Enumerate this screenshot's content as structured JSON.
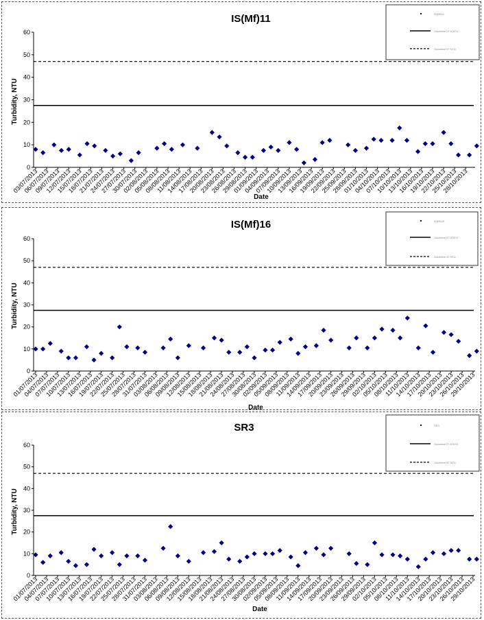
{
  "chart_data": [
    {
      "type": "scatter",
      "title": "IS(Mf)11",
      "xlabel": "Date",
      "ylabel": "Turbidity, NTU",
      "ylim": [
        0,
        60
      ],
      "yticks": [
        0,
        10,
        20,
        30,
        40,
        50,
        60
      ],
      "x_range": [
        "2013-07-03",
        "2013-10-30"
      ],
      "xticks": [
        "03/07/2013",
        "06/07/2013",
        "09/07/2013",
        "12/07/2013",
        "15/07/2013",
        "18/07/2013",
        "21/07/2013",
        "24/07/2013",
        "27/07/2013",
        "30/07/2013",
        "02/08/2013",
        "05/08/2013",
        "08/08/2013",
        "11/08/2013",
        "14/08/2013",
        "17/08/2013",
        "20/08/2013",
        "23/08/2013",
        "26/08/2013",
        "29/08/2013",
        "01/09/2013",
        "04/09/2013",
        "07/09/2013",
        "10/09/2013",
        "13/09/2013",
        "16/09/2013",
        "19/09/2013",
        "22/09/2013",
        "25/09/2013",
        "28/09/2013",
        "01/10/2013",
        "04/10/2013",
        "07/10/2013",
        "10/10/2013",
        "13/10/2013",
        "16/10/2013",
        "19/10/2013",
        "22/10/2013",
        "25/10/2013",
        "28/10/2013"
      ],
      "legend": {
        "position": "top-right",
        "entries": [
          "IS(Mf)11",
          "Guideline 27.5 NTU",
          "Guideline 47 NTU"
        ]
      },
      "hlines": [
        {
          "y": 27.5,
          "style": "solid"
        },
        {
          "y": 47,
          "style": "dashed"
        }
      ],
      "series": [
        {
          "marker": "diamond",
          "color": "#00008B",
          "points": [
            [
              "2013-07-03",
              8
            ],
            [
              "2013-07-05",
              6.5
            ],
            [
              "2013-07-08",
              10
            ],
            [
              "2013-07-10",
              7.5
            ],
            [
              "2013-07-12",
              8
            ],
            [
              "2013-07-15",
              5.5
            ],
            [
              "2013-07-17",
              10.5
            ],
            [
              "2013-07-19",
              9.5
            ],
            [
              "2013-07-22",
              7.5
            ],
            [
              "2013-07-24",
              5
            ],
            [
              "2013-07-26",
              6
            ],
            [
              "2013-07-29",
              3
            ],
            [
              "2013-07-31",
              6.5
            ],
            [
              "2013-08-05",
              8.5
            ],
            [
              "2013-08-07",
              10.5
            ],
            [
              "2013-08-09",
              8
            ],
            [
              "2013-08-12",
              10
            ],
            [
              "2013-08-16",
              8.5
            ],
            [
              "2013-08-20",
              15.5
            ],
            [
              "2013-08-22",
              13.5
            ],
            [
              "2013-08-24",
              9.5
            ],
            [
              "2013-08-27",
              6.5
            ],
            [
              "2013-08-29",
              4.5
            ],
            [
              "2013-08-31",
              4.5
            ],
            [
              "2013-09-03",
              7.5
            ],
            [
              "2013-09-05",
              9
            ],
            [
              "2013-09-07",
              7.5
            ],
            [
              "2013-09-10",
              11
            ],
            [
              "2013-09-12",
              8
            ],
            [
              "2013-09-14",
              2
            ],
            [
              "2013-09-17",
              3.5
            ],
            [
              "2013-09-19",
              11
            ],
            [
              "2013-09-21",
              12
            ],
            [
              "2013-09-26",
              10
            ],
            [
              "2013-09-28",
              7.5
            ],
            [
              "2013-10-01",
              8.5
            ],
            [
              "2013-10-03",
              12.5
            ],
            [
              "2013-10-05",
              12
            ],
            [
              "2013-10-08",
              12
            ],
            [
              "2013-10-10",
              17.5
            ],
            [
              "2013-10-12",
              12
            ],
            [
              "2013-10-15",
              7
            ],
            [
              "2013-10-17",
              10.5
            ],
            [
              "2013-10-19",
              10.5
            ],
            [
              "2013-10-22",
              15.5
            ],
            [
              "2013-10-24",
              10.5
            ],
            [
              "2013-10-26",
              5.5
            ],
            [
              "2013-10-29",
              5.5
            ],
            [
              "2013-10-31",
              9.5
            ]
          ]
        }
      ]
    },
    {
      "type": "scatter",
      "title": "IS(Mf)16",
      "xlabel": "Date",
      "ylabel": "Turbidity, NTU",
      "ylim": [
        0,
        60
      ],
      "yticks": [
        0,
        10,
        20,
        30,
        40,
        50,
        60
      ],
      "x_range": [
        "2013-07-01",
        "2013-10-29"
      ],
      "xticks": [
        "01/07/2013",
        "04/07/2013",
        "07/07/2013",
        "10/07/2013",
        "13/07/2013",
        "16/07/2013",
        "19/07/2013",
        "22/07/2013",
        "25/07/2013",
        "28/07/2013",
        "31/07/2013",
        "03/08/2013",
        "06/08/2013",
        "09/08/2013",
        "12/08/2013",
        "15/08/2013",
        "18/08/2013",
        "21/08/2013",
        "24/08/2013",
        "27/08/2013",
        "30/08/2013",
        "02/09/2013",
        "05/09/2013",
        "08/09/2013",
        "11/09/2013",
        "14/09/2013",
        "17/09/2013",
        "20/09/2013",
        "23/09/2013",
        "26/09/2013",
        "29/09/2013",
        "02/10/2013",
        "05/10/2013",
        "08/10/2013",
        "11/10/2013",
        "14/10/2013",
        "17/10/2013",
        "20/10/2013",
        "23/10/2013",
        "26/10/2013",
        "29/10/2013"
      ],
      "legend": {
        "position": "top-right",
        "entries": [
          "IS(Mf)16",
          "Guideline 27.5 NTU",
          "Guideline 47 NTU"
        ]
      },
      "hlines": [
        {
          "y": 27.5,
          "style": "solid"
        },
        {
          "y": 47,
          "style": "dashed"
        }
      ],
      "series": [
        {
          "marker": "diamond",
          "color": "#00008B",
          "points": [
            [
              "2013-07-01",
              10
            ],
            [
              "2013-07-03",
              10
            ],
            [
              "2013-07-05",
              12.5
            ],
            [
              "2013-07-08",
              9
            ],
            [
              "2013-07-10",
              6
            ],
            [
              "2013-07-12",
              6
            ],
            [
              "2013-07-15",
              11
            ],
            [
              "2013-07-17",
              5
            ],
            [
              "2013-07-19",
              8
            ],
            [
              "2013-07-22",
              6
            ],
            [
              "2013-07-24",
              20
            ],
            [
              "2013-07-26",
              11
            ],
            [
              "2013-07-29",
              10.5
            ],
            [
              "2013-07-31",
              8.5
            ],
            [
              "2013-08-05",
              10.5
            ],
            [
              "2013-08-07",
              14.5
            ],
            [
              "2013-08-09",
              6
            ],
            [
              "2013-08-12",
              11.5
            ],
            [
              "2013-08-16",
              10.5
            ],
            [
              "2013-08-19",
              15
            ],
            [
              "2013-08-21",
              14
            ],
            [
              "2013-08-23",
              8.5
            ],
            [
              "2013-08-26",
              8.5
            ],
            [
              "2013-08-28",
              11
            ],
            [
              "2013-08-30",
              6
            ],
            [
              "2013-09-02",
              9.5
            ],
            [
              "2013-09-04",
              9.5
            ],
            [
              "2013-09-06",
              13
            ],
            [
              "2013-09-09",
              14.5
            ],
            [
              "2013-09-11",
              8
            ],
            [
              "2013-09-13",
              11
            ],
            [
              "2013-09-16",
              11.5
            ],
            [
              "2013-09-18",
              18.5
            ],
            [
              "2013-09-20",
              14
            ],
            [
              "2013-09-25",
              10.5
            ],
            [
              "2013-09-27",
              15
            ],
            [
              "2013-09-30",
              10.5
            ],
            [
              "2013-10-02",
              15
            ],
            [
              "2013-10-04",
              19
            ],
            [
              "2013-10-07",
              18.5
            ],
            [
              "2013-10-09",
              15
            ],
            [
              "2013-10-11",
              24
            ],
            [
              "2013-10-14",
              10.5
            ],
            [
              "2013-10-16",
              20.5
            ],
            [
              "2013-10-18",
              8.5
            ],
            [
              "2013-10-21",
              17.5
            ],
            [
              "2013-10-23",
              16.5
            ],
            [
              "2013-10-25",
              13.5
            ],
            [
              "2013-10-28",
              7
            ],
            [
              "2013-10-30",
              9
            ]
          ]
        }
      ]
    },
    {
      "type": "scatter",
      "title": "SR3",
      "xlabel": "Date",
      "ylabel": "Turbidity, NTU",
      "ylim": [
        0,
        60
      ],
      "yticks": [
        0,
        10,
        20,
        30,
        40,
        50,
        60
      ],
      "x_range": [
        "2013-07-01",
        "2013-10-29"
      ],
      "xticks": [
        "01/07/2013",
        "04/07/2013",
        "07/07/2013",
        "10/07/2013",
        "13/07/2013",
        "16/07/2013",
        "19/07/2013",
        "22/07/2013",
        "25/07/2013",
        "28/07/2013",
        "31/07/2013",
        "03/08/2013",
        "06/08/2013",
        "09/08/2013",
        "12/08/2013",
        "15/08/2013",
        "18/08/2013",
        "21/08/2013",
        "24/08/2013",
        "27/08/2013",
        "30/08/2013",
        "02/09/2013",
        "05/09/2013",
        "08/09/2013",
        "11/09/2013",
        "14/09/2013",
        "17/09/2013",
        "20/09/2013",
        "23/09/2013",
        "26/09/2013",
        "29/09/2013",
        "02/10/2013",
        "05/10/2013",
        "08/10/2013",
        "11/10/2013",
        "14/10/2013",
        "17/10/2013",
        "20/10/2013",
        "23/10/2013",
        "26/10/2013",
        "29/10/2013"
      ],
      "legend": {
        "position": "top-right",
        "entries": [
          "SR3",
          "Guideline 27.5 NTU",
          "Guideline 47 NTU"
        ]
      },
      "hlines": [
        {
          "y": 27.5,
          "style": "solid"
        },
        {
          "y": 47,
          "style": "dashed"
        }
      ],
      "series": [
        {
          "marker": "diamond",
          "color": "#00008B",
          "points": [
            [
              "2013-07-01",
              9.5
            ],
            [
              "2013-07-03",
              6
            ],
            [
              "2013-07-05",
              9
            ],
            [
              "2013-07-08",
              10.5
            ],
            [
              "2013-07-10",
              6.5
            ],
            [
              "2013-07-12",
              4.5
            ],
            [
              "2013-07-15",
              5
            ],
            [
              "2013-07-17",
              12
            ],
            [
              "2013-07-19",
              9
            ],
            [
              "2013-07-22",
              10.5
            ],
            [
              "2013-07-24",
              5
            ],
            [
              "2013-07-26",
              9
            ],
            [
              "2013-07-29",
              9
            ],
            [
              "2013-07-31",
              7
            ],
            [
              "2013-08-05",
              12.5
            ],
            [
              "2013-08-07",
              22.5
            ],
            [
              "2013-08-09",
              9
            ],
            [
              "2013-08-12",
              6.5
            ],
            [
              "2013-08-16",
              10.5
            ],
            [
              "2013-08-19",
              11
            ],
            [
              "2013-08-21",
              15
            ],
            [
              "2013-08-23",
              7.5
            ],
            [
              "2013-08-26",
              6.5
            ],
            [
              "2013-08-28",
              8.5
            ],
            [
              "2013-08-30",
              10
            ],
            [
              "2013-09-02",
              10
            ],
            [
              "2013-09-04",
              10
            ],
            [
              "2013-09-06",
              11.5
            ],
            [
              "2013-09-09",
              8.5
            ],
            [
              "2013-09-11",
              4.5
            ],
            [
              "2013-09-13",
              10.5
            ],
            [
              "2013-09-16",
              12.5
            ],
            [
              "2013-09-18",
              9.5
            ],
            [
              "2013-09-20",
              12.5
            ],
            [
              "2013-09-25",
              10
            ],
            [
              "2013-09-27",
              5.5
            ],
            [
              "2013-09-30",
              5
            ],
            [
              "2013-10-02",
              15
            ],
            [
              "2013-10-04",
              9.5
            ],
            [
              "2013-10-07",
              9.5
            ],
            [
              "2013-10-09",
              9
            ],
            [
              "2013-10-11",
              7.5
            ],
            [
              "2013-10-14",
              4
            ],
            [
              "2013-10-16",
              7.5
            ],
            [
              "2013-10-18",
              10.5
            ],
            [
              "2013-10-21",
              10
            ],
            [
              "2013-10-23",
              11.5
            ],
            [
              "2013-10-25",
              11.5
            ],
            [
              "2013-10-28",
              7.5
            ],
            [
              "2013-10-30",
              7.5
            ]
          ]
        }
      ]
    }
  ]
}
